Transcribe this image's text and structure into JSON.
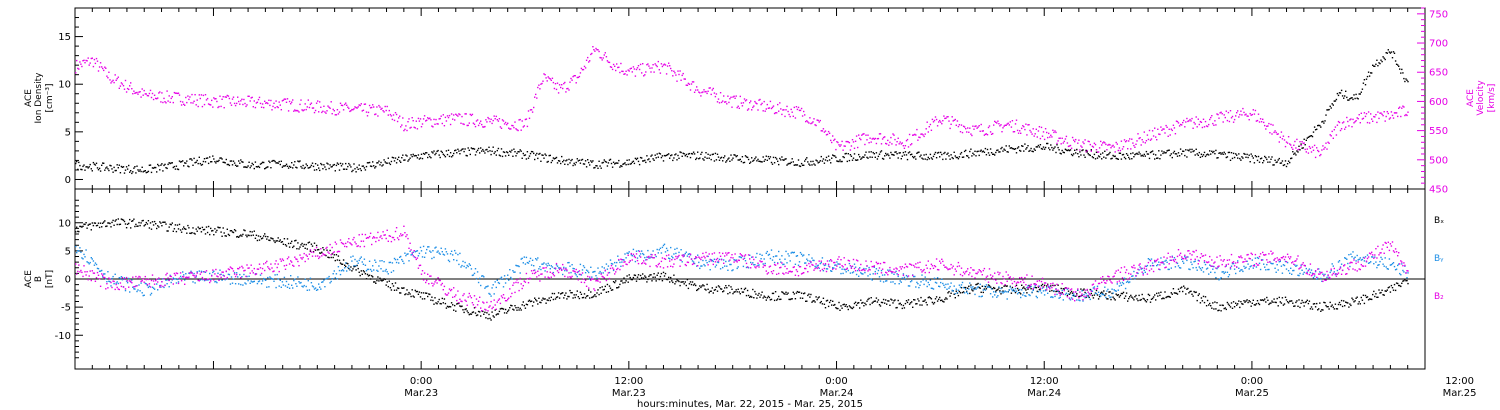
{
  "chart_data": [
    {
      "type": "scatter",
      "panel": "top",
      "ylabel_left": [
        "ACE",
        "Ion Density",
        "[cm⁻³]"
      ],
      "ylabel_right": [
        "ACE",
        "Velocity",
        "[km/s]"
      ],
      "ylim_left": [
        -1,
        18
      ],
      "yticks_left": [
        0,
        5,
        10,
        15
      ],
      "ylim_right": [
        450,
        760
      ],
      "yticks_right": [
        450,
        500,
        550,
        600,
        650,
        700,
        750
      ],
      "x_range_hours": [
        -20,
        58
      ],
      "colors": {
        "density": "#000000",
        "velocity": "#e600e6"
      },
      "series": [
        {
          "axis": "left",
          "x": [
            -20,
            -18,
            -16,
            -14,
            -12,
            -10,
            -8,
            -6,
            -4,
            -2,
            0,
            2,
            4,
            6,
            8,
            10,
            12,
            14,
            16,
            18,
            20,
            22,
            24,
            26,
            28,
            30,
            32,
            34,
            36,
            38,
            40,
            42,
            44,
            46,
            48,
            50,
            52,
            53,
            54,
            55,
            56,
            57
          ],
          "values": [
            1.5,
            1.2,
            1.0,
            1.5,
            2.2,
            1.5,
            1.6,
            1.4,
            1.2,
            1.8,
            2.5,
            2.8,
            3.0,
            2.6,
            2.0,
            1.6,
            1.8,
            2.4,
            2.5,
            2.2,
            2.0,
            1.8,
            2.2,
            2.6,
            2.5,
            2.4,
            2.8,
            3.2,
            3.4,
            2.8,
            2.4,
            2.5,
            2.8,
            2.6,
            2.2,
            1.8,
            6.0,
            9.0,
            8.5,
            12.0,
            13.5,
            10.0
          ]
        },
        {
          "axis": "right",
          "x": [
            -20,
            -19,
            -18,
            -17,
            -16,
            -14,
            -12,
            -10,
            -8,
            -6,
            -4,
            -2,
            -1,
            0,
            2,
            4,
            6,
            7,
            8,
            9,
            10,
            11,
            12,
            14,
            16,
            18,
            20,
            22,
            23,
            24,
            26,
            28,
            30,
            32,
            34,
            36,
            38,
            40,
            42,
            44,
            46,
            48,
            50,
            52,
            53,
            54,
            56,
            57
          ],
          "values": [
            660,
            670,
            640,
            625,
            610,
            605,
            600,
            598,
            595,
            590,
            586,
            583,
            560,
            565,
            570,
            565,
            560,
            640,
            620,
            640,
            690,
            665,
            650,
            660,
            620,
            600,
            590,
            580,
            560,
            520,
            540,
            530,
            570,
            550,
            560,
            545,
            525,
            520,
            540,
            560,
            570,
            580,
            530,
            510,
            560,
            570,
            575,
            585
          ]
        }
      ]
    },
    {
      "type": "scatter",
      "panel": "bottom",
      "ylabel": [
        "ACE",
        "B",
        "[nT]"
      ],
      "ylim": [
        -16,
        16
      ],
      "yticks": [
        -10,
        -5,
        0,
        5,
        10
      ],
      "x_range_hours": [
        -20,
        58
      ],
      "xlabel": "hours:minutes, Mar. 22, 2015 - Mar. 25, 2015",
      "xticks": [
        {
          "hour": 0,
          "time": "0:00",
          "date": "Mar.23"
        },
        {
          "hour": 12,
          "time": "12:00",
          "date": "Mar.23"
        },
        {
          "hour": 24,
          "time": "0:00",
          "date": "Mar.24"
        },
        {
          "hour": 36,
          "time": "12:00",
          "date": "Mar.24"
        },
        {
          "hour": 48,
          "time": "0:00",
          "date": "Mar.25"
        },
        {
          "hour": 60,
          "time": "12:00",
          "date": "Mar.25"
        }
      ],
      "legend": [
        {
          "label": "Bₓ",
          "color": "#000000"
        },
        {
          "label": "Bᵧ",
          "color": "#1f8fe6"
        },
        {
          "label": "B₂",
          "color": "#e600e6"
        }
      ],
      "series": [
        {
          "name": "Bₓ",
          "color": "#000000",
          "x": [
            -20,
            -18,
            -16,
            -14,
            -12,
            -10,
            -8,
            -6,
            -4,
            -2,
            0,
            2,
            4,
            6,
            8,
            10,
            12,
            14,
            16,
            18,
            20,
            22,
            24,
            26,
            28,
            30,
            32,
            34,
            36,
            38,
            40,
            42,
            44,
            46,
            48,
            50,
            52,
            54,
            56,
            57
          ],
          "values": [
            9.0,
            10.0,
            9.8,
            9.0,
            8.5,
            8.0,
            6.5,
            5.5,
            2.0,
            -1.0,
            -3.0,
            -5.0,
            -6.5,
            -4.5,
            -3.0,
            -2.5,
            0.0,
            0.5,
            -1.5,
            -2.0,
            -3.0,
            -3.0,
            -5.0,
            -4.0,
            -4.5,
            -3.5,
            -1.5,
            -2.0,
            -1.5,
            -2.5,
            -3.0,
            -3.5,
            -2.0,
            -5.0,
            -4.0,
            -4.0,
            -5.0,
            -4.0,
            -2.0,
            0.0
          ]
        },
        {
          "name": "Bᵧ",
          "color": "#1f8fe6",
          "x": [
            -20,
            -18,
            -16,
            -14,
            -12,
            -10,
            -8,
            -6,
            -4,
            -2,
            0,
            2,
            4,
            6,
            8,
            10,
            12,
            14,
            16,
            18,
            20,
            22,
            24,
            26,
            28,
            30,
            32,
            34,
            36,
            38,
            40,
            42,
            44,
            46,
            48,
            50,
            52,
            54,
            56,
            57
          ],
          "values": [
            6.0,
            0.0,
            -2.0,
            0.0,
            0.5,
            0.0,
            -0.5,
            -1.0,
            3.0,
            2.0,
            5.0,
            4.0,
            -2.0,
            3.0,
            2.0,
            1.0,
            4.0,
            5.0,
            3.0,
            2.5,
            4.0,
            3.5,
            2.0,
            1.0,
            0.0,
            -1.0,
            -2.0,
            -2.5,
            -2.0,
            -3.0,
            -2.0,
            2.5,
            3.0,
            1.0,
            3.0,
            2.0,
            0.5,
            4.0,
            2.5,
            1.0
          ]
        },
        {
          "name": "B₂",
          "color": "#e600e6",
          "x": [
            -20,
            -18,
            -16,
            -14,
            -12,
            -10,
            -8,
            -6,
            -4,
            -2,
            -1,
            0,
            2,
            4,
            6,
            8,
            10,
            12,
            14,
            16,
            18,
            20,
            22,
            24,
            26,
            28,
            30,
            32,
            34,
            36,
            38,
            40,
            42,
            44,
            46,
            48,
            50,
            52,
            54,
            56,
            57
          ],
          "values": [
            2.0,
            -1.0,
            -0.5,
            0.0,
            0.5,
            1.5,
            2.5,
            4.5,
            6.5,
            7.5,
            8.5,
            1.0,
            -3.0,
            -5.0,
            0.0,
            2.0,
            -1.0,
            4.0,
            3.0,
            3.5,
            4.0,
            2.0,
            1.5,
            3.0,
            2.0,
            1.5,
            2.5,
            1.0,
            0.0,
            -1.0,
            -3.0,
            0.5,
            2.0,
            4.5,
            3.0,
            3.5,
            4.0,
            0.5,
            2.5,
            6.0,
            0.5
          ]
        }
      ]
    }
  ]
}
